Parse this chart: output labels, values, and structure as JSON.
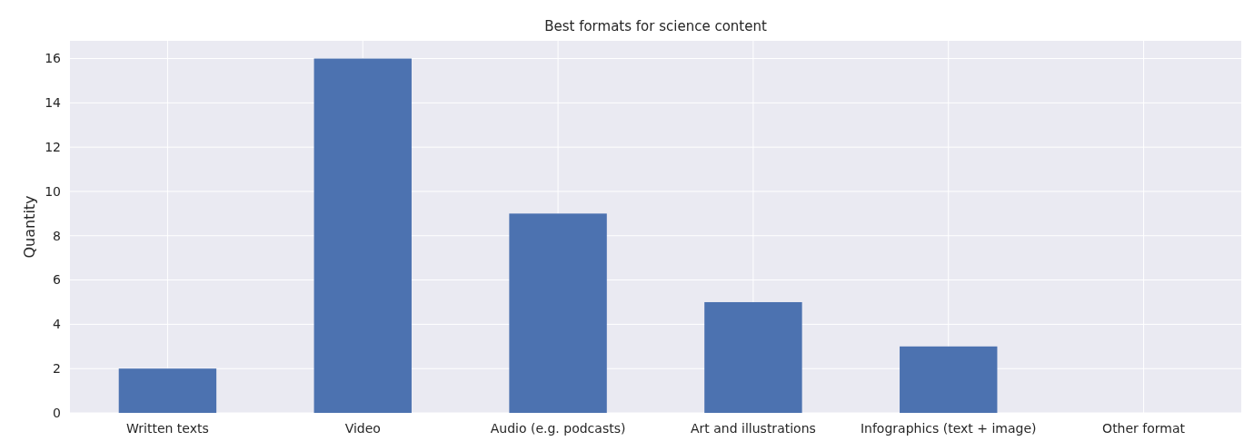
{
  "chart_data": {
    "type": "bar",
    "title": "Best formats for science content",
    "ylabel": "Quantity",
    "categories": [
      "Written texts",
      "Video",
      "Audio (e.g. podcasts)",
      "Art and illustrations",
      "Infographics (text + image)",
      "Other format"
    ],
    "values": [
      2,
      16,
      9,
      5,
      3,
      0
    ],
    "color": "#4c72b0",
    "ylim": [
      0,
      16.8
    ],
    "yticks": [
      0,
      2,
      4,
      6,
      8,
      10,
      12,
      14,
      16
    ],
    "grid": true
  }
}
